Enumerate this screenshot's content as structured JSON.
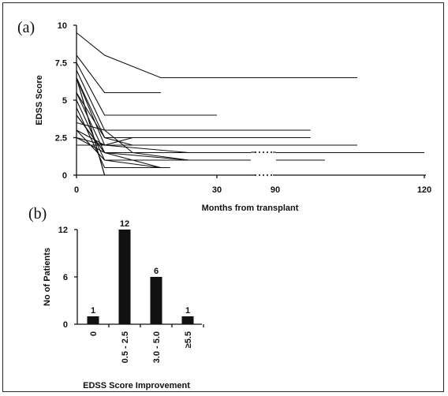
{
  "chart_data": [
    {
      "panel_label": "(a)",
      "type": "line",
      "xlabel": "Months from transplant",
      "ylabel": "EDSS Score",
      "x_ticks": [
        "0",
        "30",
        "90",
        "120"
      ],
      "y_ticks": [
        "0",
        "2.5",
        "5",
        "7.5",
        "10"
      ],
      "ylim": [
        0,
        10
      ],
      "x_axis_break": "between 60 and 90 months",
      "series": [
        {
          "x": [
            0,
            6,
            18,
            60
          ],
          "y": [
            9.5,
            8,
            6.5,
            6.5
          ]
        },
        {
          "x": [
            0,
            6,
            18
          ],
          "y": [
            8,
            5.5,
            5.5
          ]
        },
        {
          "x": [
            0,
            6,
            30
          ],
          "y": [
            7.5,
            4,
            4
          ]
        },
        {
          "x": [
            0,
            6,
            50
          ],
          "y": [
            7,
            3,
            3
          ]
        },
        {
          "x": [
            0,
            6,
            50
          ],
          "y": [
            6.5,
            2.5,
            2.5
          ]
        },
        {
          "x": [
            0,
            6,
            60
          ],
          "y": [
            6.5,
            2,
            2
          ]
        },
        {
          "x": [
            0,
            6,
            120
          ],
          "y": [
            5.5,
            1.5,
            1.5
          ]
        },
        {
          "x": [
            0,
            6,
            100
          ],
          "y": [
            5,
            1,
            1
          ]
        },
        {
          "x": [
            0,
            6,
            20
          ],
          "y": [
            4.5,
            0.5,
            0.5
          ]
        },
        {
          "x": [
            0,
            6,
            60
          ],
          "y": [
            6.5,
            0,
            0
          ]
        },
        {
          "x": [
            0,
            6,
            24
          ],
          "y": [
            4,
            1.5,
            1
          ]
        },
        {
          "x": [
            0,
            6,
            12,
            24
          ],
          "y": [
            3.5,
            3,
            1.5,
            1
          ]
        },
        {
          "x": [
            0,
            6,
            12
          ],
          "y": [
            3,
            2,
            2.5
          ]
        },
        {
          "x": [
            0,
            6,
            36
          ],
          "y": [
            2.5,
            1.5,
            1.5
          ]
        },
        {
          "x": [
            0,
            6,
            24
          ],
          "y": [
            2,
            2,
            1.5
          ]
        },
        {
          "x": [
            0,
            6,
            18
          ],
          "y": [
            4,
            1.5,
            0.5
          ]
        },
        {
          "x": [
            0,
            6,
            12
          ],
          "y": [
            5.5,
            2.5,
            2
          ]
        },
        {
          "x": [
            0,
            6,
            18
          ],
          "y": [
            3,
            1,
            0.5
          ]
        },
        {
          "x": [
            0,
            6,
            30
          ],
          "y": [
            2.5,
            2,
            2
          ]
        },
        {
          "x": [
            0,
            6
          ],
          "y": [
            6.5,
            0
          ]
        }
      ]
    },
    {
      "panel_label": "(b)",
      "type": "bar",
      "xlabel": "EDSS Score Improvement",
      "ylabel": "No of Patients",
      "categories": [
        "0",
        "0.5 - 2.5",
        "3.0 - 5.0",
        "≥5.5"
      ],
      "values": [
        1,
        12,
        6,
        1
      ],
      "data_labels": [
        "1",
        "12",
        "6",
        "1"
      ],
      "y_ticks": [
        "0",
        "6",
        "12"
      ],
      "ylim": [
        0,
        12
      ]
    }
  ]
}
